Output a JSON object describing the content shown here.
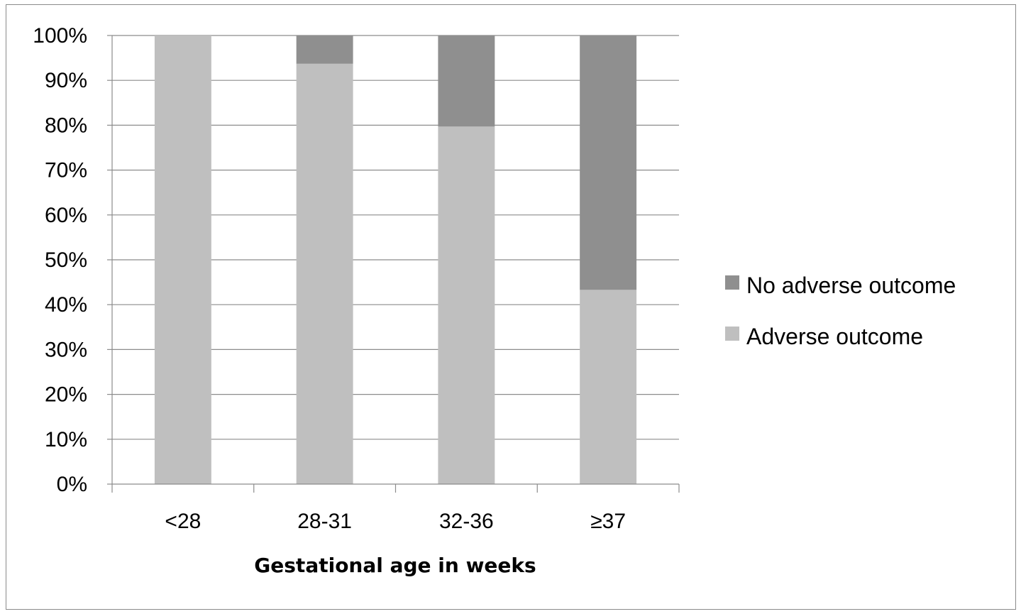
{
  "chart_data": {
    "type": "bar",
    "stacked": true,
    "normalized_percent": true,
    "categories": [
      "<28",
      "28-31",
      "32-36",
      "≥37"
    ],
    "series": [
      {
        "name": "Adverse outcome",
        "values": [
          100,
          93.7,
          79.7,
          43.3
        ],
        "color": "#bfbfbf"
      },
      {
        "name": "No adverse outcome",
        "values": [
          0,
          6.3,
          20.3,
          56.7
        ],
        "color": "#8f8f8f"
      }
    ],
    "title": "",
    "xlabel": "Gestational age in weeks",
    "ylabel": "",
    "ylim": [
      0,
      100
    ],
    "yticks": [
      "0%",
      "10%",
      "20%",
      "30%",
      "40%",
      "50%",
      "60%",
      "70%",
      "80%",
      "90%",
      "100%"
    ],
    "grid": true,
    "legend_position": "right",
    "legend": [
      {
        "name": "No adverse outcome",
        "color": "#8f8f8f"
      },
      {
        "name": "Adverse outcome",
        "color": "#bfbfbf"
      }
    ]
  }
}
